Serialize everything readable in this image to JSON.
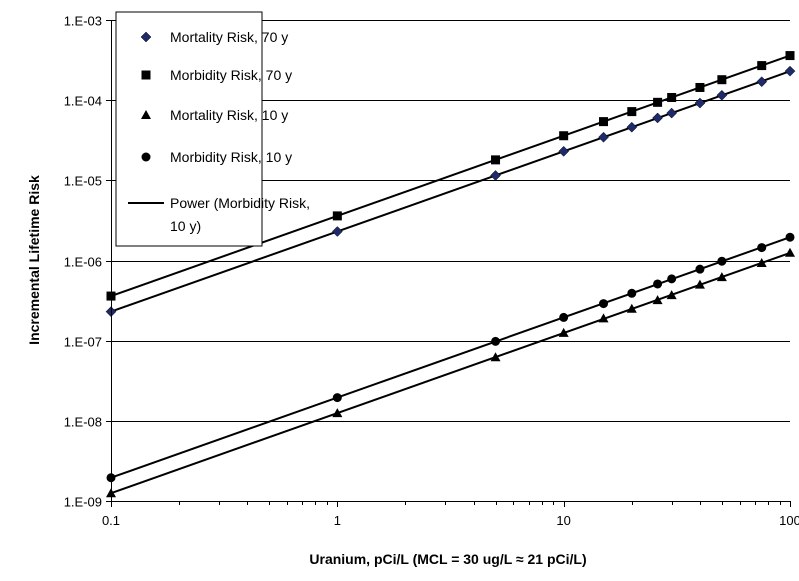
{
  "chart_data": {
    "type": "scatter",
    "x_scale": "log",
    "y_scale": "log",
    "xlabel": "Uranium, pCi/L (MCL = 30 ug/L ≈ 21 pCi/L)",
    "ylabel": "Incremental Lifetime Risk",
    "xlim": [
      0.1,
      100
    ],
    "ylim": [
      1e-09,
      0.001
    ],
    "x_ticks": [
      0.1,
      1,
      10,
      100
    ],
    "x_tick_labels": [
      "0.1",
      "1",
      "10",
      "100"
    ],
    "y_ticks": [
      1e-09,
      1e-08,
      1e-07,
      1e-06,
      1e-05,
      0.0001,
      0.001
    ],
    "y_tick_labels": [
      "1.E-09",
      "1.E-08",
      "1.E-07",
      "1.E-06",
      "1.E-05",
      "1.E-04",
      "1.E-03"
    ],
    "grid": "horizontal major gridlines",
    "legend_position": "top-left inside plot",
    "x": [
      0.1,
      1,
      5,
      10,
      15,
      20,
      26,
      30,
      40,
      50,
      75,
      100
    ],
    "series": [
      {
        "name": "Mortality Risk, 70 y",
        "marker": "diamond",
        "color": "#1F2A6B",
        "values": [
          2.3e-07,
          2.3e-06,
          1.15e-05,
          2.3e-05,
          3.45e-05,
          4.6e-05,
          6e-05,
          6.9e-05,
          9.2e-05,
          0.000115,
          0.00017,
          0.00023
        ]
      },
      {
        "name": "Morbidity Risk, 70 y",
        "marker": "square",
        "color": "#000000",
        "values": [
          3.6e-07,
          3.6e-06,
          1.8e-05,
          3.6e-05,
          5.4e-05,
          7.2e-05,
          9.4e-05,
          0.000108,
          0.000144,
          0.00018,
          0.00027,
          0.00036
        ]
      },
      {
        "name": "Mortality Risk, 10 y",
        "marker": "triangle",
        "color": "#000000",
        "values": [
          1.25e-09,
          1.25e-08,
          6.2e-08,
          1.25e-07,
          1.9e-07,
          2.5e-07,
          3.2e-07,
          3.7e-07,
          5e-07,
          6.2e-07,
          9.3e-07,
          1.25e-06
        ]
      },
      {
        "name": "Morbidity Risk, 10 y",
        "marker": "circle",
        "color": "#000000",
        "values": [
          1.95e-09,
          1.95e-08,
          9.8e-08,
          1.95e-07,
          2.9e-07,
          3.9e-07,
          5.1e-07,
          5.9e-07,
          7.8e-07,
          9.8e-07,
          1.45e-06,
          1.95e-06
        ]
      }
    ],
    "trendline": {
      "name": "Power (Morbidity Risk, 10 y)",
      "name_lines": [
        "Power (Morbidity Risk,",
        "10 y)"
      ],
      "type": "power"
    }
  },
  "colors": {
    "marker_dark_blue": "#1F2A6B",
    "line": "#000000",
    "grid": "#000000",
    "plot_bg": "#ffffff"
  }
}
